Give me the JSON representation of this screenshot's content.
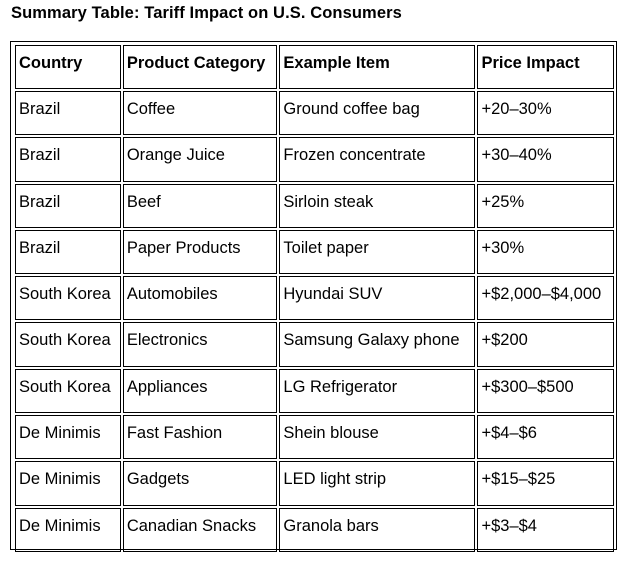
{
  "title": "Summary Table: Tariff Impact on U.S. Consumers",
  "table": {
    "headers": [
      "Country",
      "Product Category",
      "Example Item",
      "Price Impact"
    ],
    "rows": [
      [
        "Brazil",
        "Coffee",
        "Ground coffee bag",
        "+20–30%"
      ],
      [
        "Brazil",
        "Orange Juice",
        "Frozen concentrate",
        "+30–40%"
      ],
      [
        "Brazil",
        "Beef",
        "Sirloin steak",
        "+25%"
      ],
      [
        "Brazil",
        "Paper Products",
        "Toilet paper",
        "+30%"
      ],
      [
        "South Korea",
        "Automobiles",
        "Hyundai SUV",
        "+$2,000–$4,000"
      ],
      [
        "South Korea",
        "Electronics",
        "Samsung Galaxy phone",
        "+$200"
      ],
      [
        "South Korea",
        "Appliances",
        "LG Refrigerator",
        "+$300–$500"
      ],
      [
        "De Minimis",
        "Fast Fashion",
        "Shein blouse",
        "+$4–$6"
      ],
      [
        "De Minimis",
        "Gadgets",
        "LED light strip",
        "+$15–$25"
      ],
      [
        "De Minimis",
        "Canadian Snacks",
        "Granola bars",
        "+$3–$4"
      ]
    ]
  }
}
